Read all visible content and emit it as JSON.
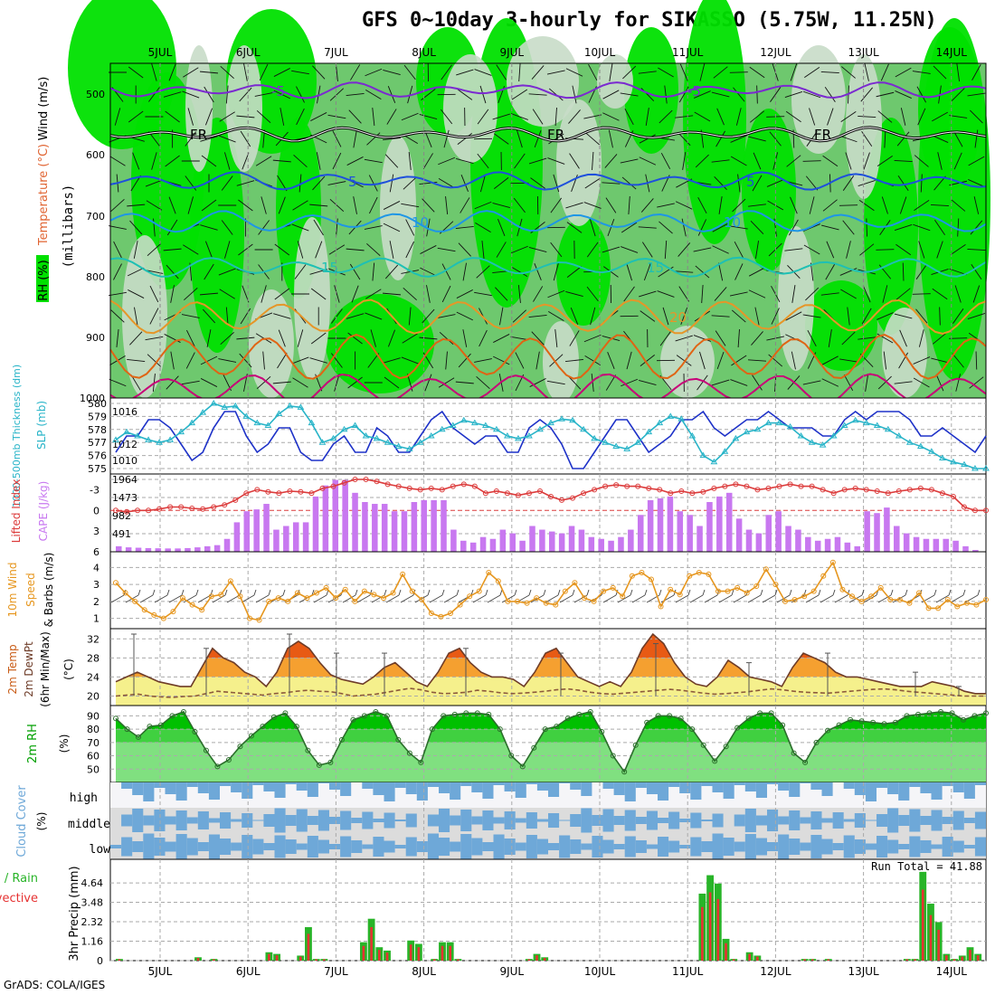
{
  "title": "GFS 0~10day 3-hourly for SIKASSO (5.75W, 11.25N)",
  "credit": "GrADS: COLA/IGES",
  "colors": {
    "rh_dark": "#00e000",
    "rh_mid": "#6ec86e",
    "rh_light": "#c8dcc8",
    "temp_cold": "#7b2ad0",
    "temp_fr": "#000000",
    "temp_5": "#1e50dc",
    "temp_10": "#1e96e6",
    "temp_15": "#1ec0b4",
    "temp_20": "#e69628",
    "temp_25": "#e06414",
    "temp_30": "#c80078",
    "slp": "#1e32c8",
    "thickness": "#28b4c8",
    "lifted": "#dc3c3c",
    "cape": "#c878f0",
    "wind": "#e6961e",
    "temp_fill_hi": "#e85a14",
    "temp_fill_mid": "#f5a030",
    "temp_fill_lo": "#f5f08c",
    "dewpt": "#8c5a3c",
    "rh_fill1": "#00c000",
    "rh_fill2": "#40d040",
    "rh_fill3": "#80e080",
    "cloud": "#6ea8d8",
    "cloud_bg": "#dcdcdc",
    "precip_total": "#28b428",
    "precip_conv": "#e63232"
  },
  "chart_data": [
    {
      "id": "upper-air",
      "type": "heatmap",
      "date_labels": [
        "5JUL",
        "6JUL",
        "7JUL",
        "8JUL",
        "9JUL",
        "10JUL",
        "11JUL",
        "12JUL",
        "13JUL",
        "14JUL"
      ],
      "ylabel_parts": [
        "RH (%)",
        "Temperature (°C)",
        "Wind (m/s)"
      ],
      "y_unit": "(millibars)",
      "y_ticks": [
        "500",
        "600",
        "700",
        "800",
        "900",
        "1000"
      ],
      "contour_labels": [
        "-5",
        "FR",
        "5",
        "10",
        "15",
        "20"
      ]
    },
    {
      "id": "slp-thickness",
      "type": "line",
      "ylabel_left": "1000-500mb Thickness (dm)",
      "ylabel_right": "SLP (mb)",
      "left_ticks": [
        "580",
        "579",
        "578",
        "577",
        "576",
        "575"
      ],
      "right_ticks": [
        "1016",
        "1012",
        "1010"
      ],
      "slp": [
        1011,
        1013,
        1013,
        1015,
        1015,
        1014,
        1012,
        1010,
        1011,
        1014,
        1016,
        1016,
        1013,
        1011,
        1012,
        1014,
        1014,
        1011,
        1010,
        1010,
        1012,
        1013,
        1011,
        1011,
        1014,
        1013,
        1011,
        1011,
        1013,
        1015,
        1016,
        1014,
        1013,
        1012,
        1013,
        1013,
        1011,
        1011,
        1014,
        1015,
        1014,
        1012,
        1009,
        1009,
        1011,
        1013,
        1015,
        1015,
        1013,
        1011,
        1012,
        1013,
        1015,
        1015,
        1016,
        1014,
        1013,
        1014,
        1015,
        1015,
        1016,
        1015,
        1014,
        1014,
        1014,
        1013,
        1013,
        1015,
        1016,
        1015,
        1016,
        1016,
        1016,
        1015,
        1013,
        1013,
        1014,
        1013,
        1012,
        1011,
        1013
      ],
      "thickness": [
        577.2,
        577.8,
        577.5,
        577.2,
        577.0,
        577.2,
        577.8,
        578.5,
        579.3,
        580.0,
        579.7,
        579.8,
        579.0,
        578.5,
        578.3,
        579.2,
        579.8,
        579.7,
        578.5,
        577.0,
        577.3,
        578.0,
        578.3,
        577.5,
        577.3,
        577.0,
        576.7,
        576.5,
        577.0,
        577.5,
        578.0,
        578.3,
        578.7,
        578.5,
        578.3,
        578.0,
        577.5,
        577.3,
        577.5,
        578.0,
        578.5,
        578.8,
        578.7,
        578.0,
        577.3,
        577.0,
        576.7,
        576.5,
        577.0,
        577.8,
        578.5,
        579.0,
        578.8,
        577.5,
        576.0,
        575.5,
        576.3,
        577.3,
        577.8,
        578.0,
        578.5,
        578.5,
        578.2,
        577.5,
        577.0,
        576.8,
        577.5,
        578.3,
        578.7,
        578.5,
        578.3,
        578.0,
        577.5,
        577.0,
        576.7,
        576.3,
        575.8,
        575.5,
        575.3,
        575.0,
        575.0
      ]
    },
    {
      "id": "lifted-cape",
      "type": "bar",
      "ylabel_left": "Lifted Index",
      "ylabel_right": "CAPE (J/kg)",
      "li_ticks": [
        "-3",
        "0",
        "3",
        "6"
      ],
      "cape_ticks": [
        "1964",
        "1473",
        "982",
        "491"
      ],
      "lifted": [
        0.0,
        0.2,
        0.0,
        0.0,
        -0.2,
        -0.5,
        -0.5,
        -0.3,
        -0.2,
        -0.5,
        -0.8,
        -1.5,
        -2.5,
        -3.0,
        -2.7,
        -2.5,
        -2.8,
        -2.7,
        -2.5,
        -3.2,
        -3.5,
        -4.0,
        -4.5,
        -4.5,
        -4.2,
        -3.8,
        -3.5,
        -3.2,
        -3.0,
        -3.2,
        -3.0,
        -3.5,
        -3.8,
        -3.5,
        -2.5,
        -2.8,
        -2.5,
        -2.2,
        -2.5,
        -2.8,
        -2.0,
        -1.5,
        -1.8,
        -2.5,
        -3.0,
        -3.5,
        -3.7,
        -3.5,
        -3.5,
        -3.2,
        -3.0,
        -2.5,
        -2.8,
        -2.5,
        -2.7,
        -3.2,
        -3.5,
        -3.8,
        -3.5,
        -3.0,
        -3.2,
        -3.5,
        -3.8,
        -3.5,
        -3.5,
        -3.0,
        -2.5,
        -3.0,
        -3.2,
        -3.0,
        -2.8,
        -2.5,
        -2.8,
        -3.0,
        -3.2,
        -3.0,
        -2.5,
        -2.0,
        -0.5,
        0.0,
        0.0
      ],
      "cape": [
        150,
        120,
        110,
        100,
        95,
        90,
        90,
        100,
        120,
        150,
        180,
        350,
        800,
        1100,
        1150,
        1300,
        600,
        700,
        800,
        800,
        1500,
        1800,
        1950,
        1950,
        1600,
        1350,
        1300,
        1300,
        1100,
        1100,
        1350,
        1400,
        1400,
        1400,
        600,
        300,
        250,
        400,
        350,
        600,
        500,
        300,
        700,
        600,
        550,
        500,
        700,
        600,
        400,
        350,
        300,
        400,
        600,
        1000,
        1400,
        1450,
        1500,
        1100,
        1000,
        700,
        1350,
        1500,
        1600,
        900,
        600,
        500,
        1000,
        1100,
        700,
        600,
        400,
        300,
        350,
        400,
        250,
        150,
        1100,
        1050,
        1200,
        700,
        500,
        400,
        350,
        350,
        350,
        300,
        150,
        50
      ]
    },
    {
      "id": "wind",
      "type": "line",
      "ylabel": "10m Wind Speed & Barbs (m/s)",
      "y_ticks": [
        "4",
        "3",
        "2",
        "1"
      ],
      "speed": [
        3.1,
        2.5,
        2.0,
        1.5,
        1.2,
        1.0,
        1.4,
        2.2,
        1.8,
        1.5,
        2.3,
        2.4,
        3.2,
        2.3,
        1.0,
        0.9,
        2.0,
        2.2,
        2.0,
        2.5,
        2.2,
        2.5,
        2.8,
        2.2,
        2.7,
        2.0,
        2.6,
        2.4,
        2.2,
        2.5,
        3.6,
        2.6,
        2.1,
        1.3,
        1.1,
        1.3,
        1.8,
        2.3,
        2.6,
        3.7,
        3.2,
        2.0,
        2.0,
        1.9,
        2.2,
        1.9,
        1.8,
        2.6,
        3.1,
        2.2,
        2.0,
        2.6,
        2.8,
        2.3,
        3.5,
        3.7,
        3.3,
        1.7,
        2.7,
        2.4,
        3.5,
        3.7,
        3.6,
        2.6,
        2.6,
        2.8,
        2.5,
        2.9,
        3.9,
        3.0,
        2.0,
        2.1,
        2.3,
        2.6,
        3.5,
        4.3,
        2.7,
        2.3,
        2.0,
        2.3,
        2.8,
        2.1,
        2.1,
        1.9,
        2.5,
        1.6,
        1.6,
        2.1,
        1.7,
        1.9,
        1.8,
        2.1
      ]
    },
    {
      "id": "temp",
      "type": "area",
      "ylabel": "2m Temp 2m DewPt (6hr Min/Max) (°C)",
      "y_ticks": [
        "32",
        "28",
        "24",
        "20"
      ],
      "temp": [
        23,
        24,
        25,
        24,
        23,
        22.5,
        22,
        22,
        26,
        30,
        28,
        27,
        25,
        24,
        22,
        25,
        30,
        31.5,
        30,
        27,
        24.5,
        23.5,
        23,
        22.5,
        24,
        26,
        27,
        25,
        23,
        22,
        25,
        29,
        30,
        27,
        25,
        24,
        24,
        23.5,
        22,
        25,
        29,
        30,
        27,
        24,
        23,
        22,
        23,
        22,
        25,
        30,
        33,
        31,
        27,
        24,
        22.5,
        22,
        24,
        27.5,
        26,
        24,
        23.5,
        23,
        22,
        26,
        29,
        28,
        27,
        25,
        24,
        24,
        23.5,
        23,
        22.5,
        22,
        22,
        22,
        23,
        22.5,
        22,
        21,
        20.5,
        20.5
      ],
      "dewpt": [
        20,
        20.2,
        20.4,
        20.0,
        19.8,
        19.7,
        19.9,
        20.0,
        20.5,
        21.0,
        20.8,
        20.6,
        20.4,
        20.2,
        20.5,
        20.7,
        21.0,
        21.2,
        21.0,
        20.9,
        20.5,
        20.0,
        20.2,
        20.4,
        20.8,
        21.2,
        21.6,
        21.3,
        20.8,
        20.5,
        20.6,
        20.8,
        21.2,
        21.0,
        20.7,
        20.5,
        20.6,
        20.8,
        21.0,
        21.3,
        21.5,
        21.2,
        20.8,
        20.5,
        20.4,
        20.6,
        20.8,
        21.0,
        21.2,
        21.4,
        21.2,
        20.9,
        20.6,
        20.4,
        20.5,
        20.7,
        20.9,
        21.2,
        21.5,
        21.3,
        21.0,
        20.8,
        20.7,
        20.6,
        20.8,
        21.0,
        21.2,
        21.4,
        21.5,
        21.3,
        21.0,
        20.8,
        20.6,
        20.4,
        20.2,
        20.0,
        20.0,
        20.0
      ]
    },
    {
      "id": "rh",
      "type": "area",
      "ylabel": "2m RH (%)",
      "y_ticks": [
        "90",
        "80",
        "70",
        "60",
        "50"
      ],
      "rh": [
        88,
        80,
        74,
        82,
        83,
        90,
        93,
        78,
        64,
        52,
        57,
        67,
        75,
        82,
        89,
        92,
        82,
        64,
        53,
        55,
        72,
        87,
        90,
        93,
        90,
        72,
        62,
        55,
        80,
        90,
        91,
        92,
        92,
        91,
        80,
        60,
        52,
        66,
        80,
        82,
        88,
        91,
        93,
        78,
        60,
        48,
        68,
        85,
        90,
        90,
        88,
        80,
        68,
        56,
        67,
        81,
        88,
        92,
        92,
        83,
        62,
        55,
        70,
        79,
        83,
        87,
        86,
        85,
        84,
        85,
        90,
        91,
        92,
        93,
        92,
        87,
        90,
        92
      ]
    },
    {
      "id": "cloud",
      "type": "area",
      "ylabel": "Cloud Cover (%)",
      "layer_labels": [
        "high",
        "middle",
        "low"
      ]
    },
    {
      "id": "precip",
      "type": "bar",
      "ylabel_left": "Total / Rain",
      "ylabel_left2": "Convective",
      "ylabel": "3hr Precip (mm)",
      "y_ticks": [
        "4.64",
        "3.48",
        "2.32",
        "1.16",
        "0"
      ],
      "run_total": "Run Total = 41.88",
      "total": [
        0.1,
        0,
        0,
        0,
        0,
        0,
        0,
        0,
        0,
        0,
        0.2,
        0,
        0.1,
        0,
        0,
        0,
        0,
        0,
        0,
        0.5,
        0.4,
        0,
        0,
        0.3,
        2.0,
        0.1,
        0.1,
        0,
        0,
        0,
        0,
        1.1,
        2.5,
        0.8,
        0.6,
        0,
        0,
        1.2,
        1.0,
        0,
        0.1,
        1.1,
        1.1,
        0.1,
        0,
        0,
        0,
        0,
        0,
        0,
        0,
        0,
        0.1,
        0.4,
        0.2,
        0,
        0,
        0,
        0,
        0,
        0,
        0,
        0,
        0,
        0,
        0,
        0,
        0,
        0,
        0,
        0,
        0,
        0,
        0,
        4.0,
        5.1,
        4.6,
        1.3,
        0.1,
        0,
        0.5,
        0.3,
        0,
        0,
        0,
        0,
        0,
        0.1,
        0.1,
        0,
        0.1,
        0,
        0,
        0,
        0,
        0,
        0,
        0,
        0,
        0,
        0.1,
        0.1,
        5.3,
        3.4,
        2.3,
        0.4,
        0.1,
        0.3,
        0.8,
        0.4
      ]
    }
  ]
}
